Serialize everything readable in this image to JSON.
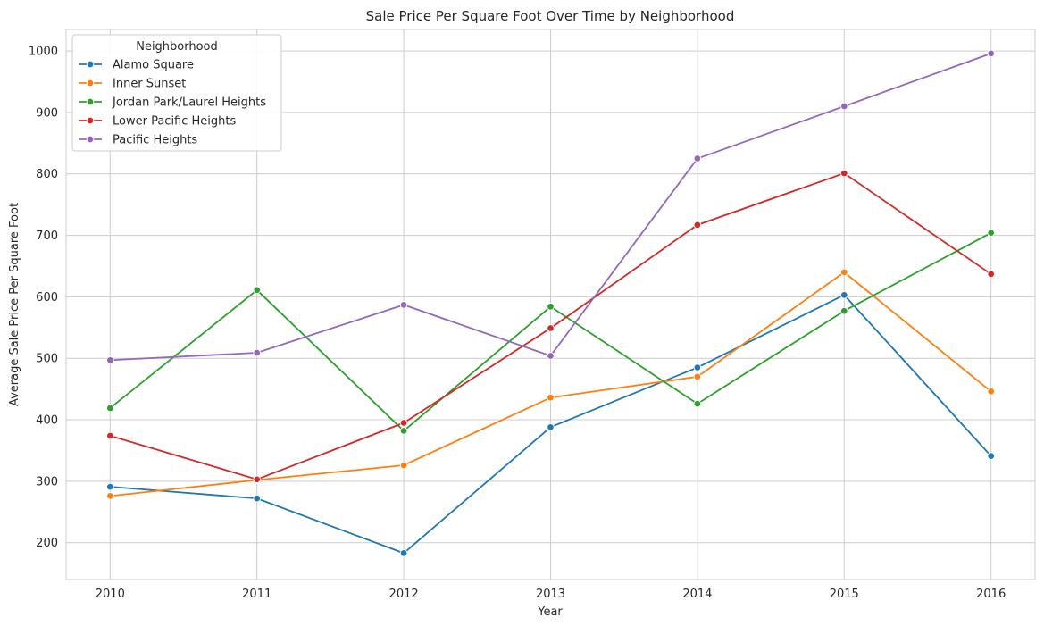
{
  "chart_data": {
    "type": "line",
    "title": "Sale Price Per Square Foot Over Time by Neighborhood",
    "xlabel": "Year",
    "ylabel": "Average Sale Price Per Square Foot",
    "x": [
      2010,
      2011,
      2012,
      2013,
      2014,
      2015,
      2016
    ],
    "x_tick_labels": [
      "2010",
      "2011",
      "2012",
      "2013",
      "2014",
      "2015",
      "2016"
    ],
    "y_ticks": [
      200,
      300,
      400,
      500,
      600,
      700,
      800,
      900,
      1000
    ],
    "y_tick_labels": [
      "200",
      "300",
      "400",
      "500",
      "600",
      "700",
      "800",
      "900",
      "1000"
    ],
    "xlim": [
      2009.7,
      2016.3
    ],
    "ylim": [
      140,
      1035
    ],
    "grid": true,
    "legend": {
      "title": "Neighborhood",
      "placement": "top-left"
    },
    "series": [
      {
        "name": "Alamo Square",
        "color": "#1f77b4",
        "values": [
          291,
          272,
          183,
          388,
          485,
          603,
          341
        ]
      },
      {
        "name": "Inner Sunset",
        "color": "#ff7f0e",
        "values": [
          276,
          302,
          326,
          436,
          470,
          640,
          446
        ]
      },
      {
        "name": "Jordan Park/Laurel Heights",
        "color": "#2ca02c",
        "values": [
          419,
          611,
          382,
          584,
          426,
          577,
          704
        ]
      },
      {
        "name": "Lower Pacific Heights",
        "color": "#d62728",
        "values": [
          374,
          303,
          395,
          549,
          717,
          801,
          637
        ]
      },
      {
        "name": "Pacific Heights",
        "color": "#9467bd",
        "values": [
          497,
          509,
          587,
          504,
          825,
          910,
          996
        ]
      }
    ]
  }
}
